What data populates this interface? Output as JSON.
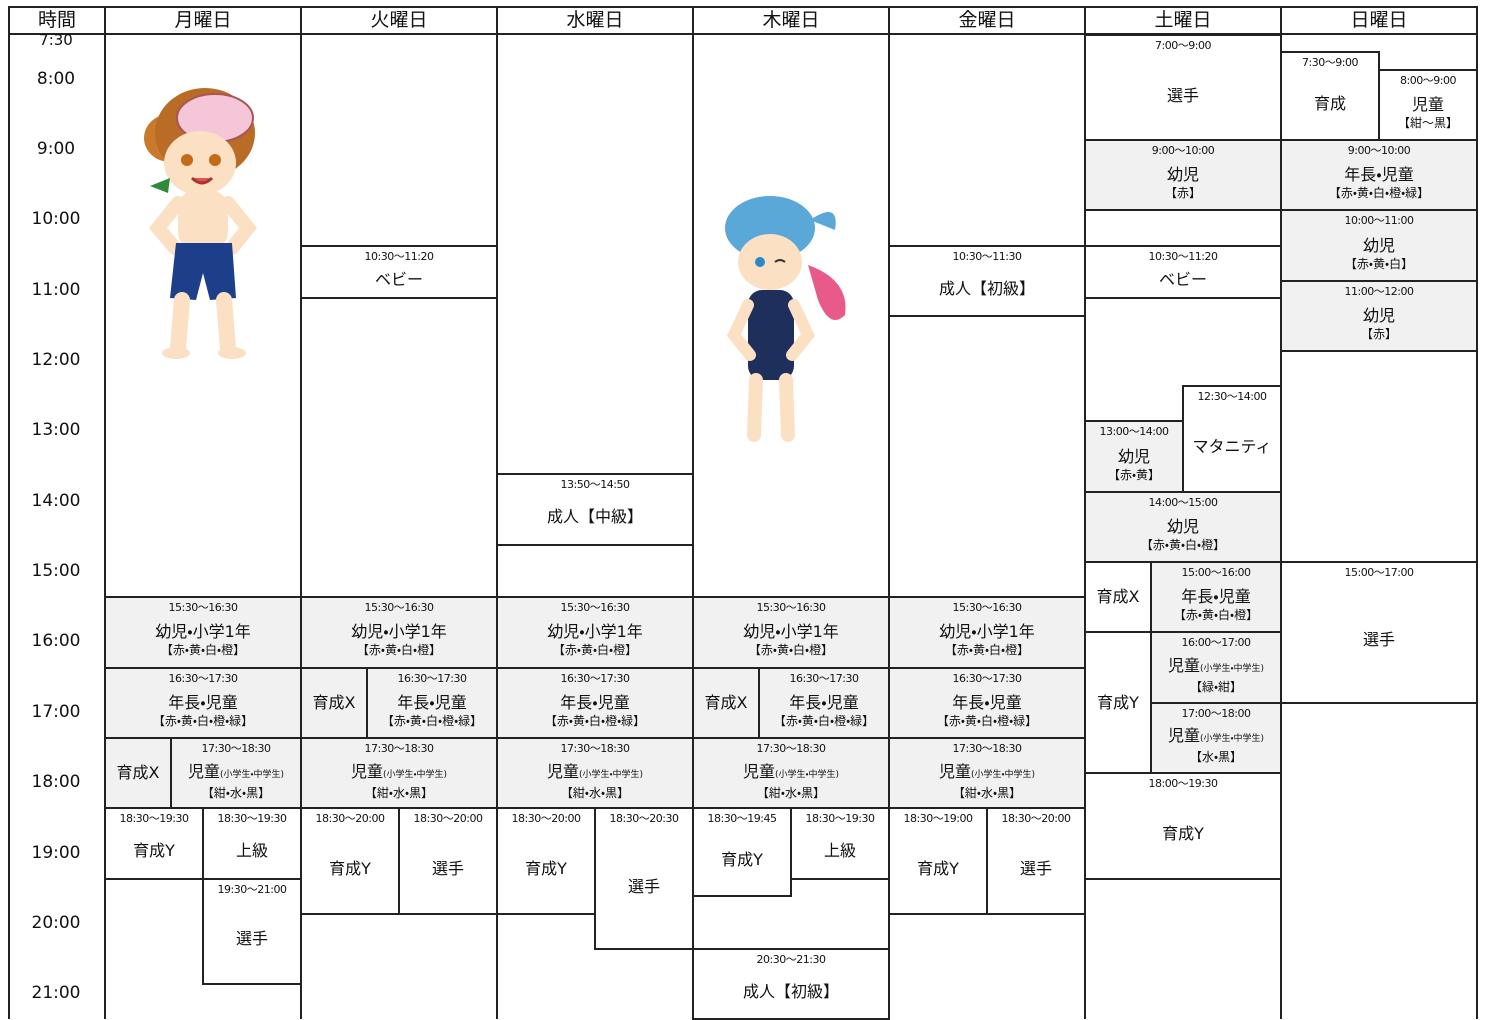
{
  "header": {
    "time": "時間",
    "days": [
      "月曜日",
      "火曜日",
      "水曜日",
      "木曜日",
      "金曜日",
      "土曜日",
      "日曜日"
    ]
  },
  "times": [
    "7:30",
    "8:00",
    "9:00",
    "10:00",
    "11:00",
    "12:00",
    "13:00",
    "14:00",
    "15:00",
    "16:00",
    "17:00",
    "18:00",
    "19:00",
    "20:00",
    "21:00"
  ],
  "days": [
    {
      "blocks": [
        {
          "time": "15:30〜16:30",
          "title": "幼児・小学1年",
          "sub": "【赤・黄・白・橙】"
        },
        {
          "time": "16:30〜17:30",
          "title": "年長・児童",
          "sub": "【赤・黄・白・橙・緑】"
        },
        {
          "title": "育成X"
        },
        {
          "time": "17:30〜18:30",
          "title": "児童",
          "note": "(小学生・中学生)",
          "sub": "【紺・水・黒】"
        },
        {
          "time": "18:30〜19:30",
          "title": "育成Y"
        },
        {
          "time": "18:30〜19:30",
          "title": "上級"
        },
        {
          "time": "19:30〜21:00",
          "title": "選手"
        }
      ]
    },
    {
      "blocks": [
        {
          "time": "10:30〜11:20",
          "title": "ベビー"
        },
        {
          "time": "15:30〜16:30",
          "title": "幼児・小学1年",
          "sub": "【赤・黄・白・橙】"
        },
        {
          "title": "育成X"
        },
        {
          "time": "16:30〜17:30",
          "title": "年長・児童",
          "sub": "【赤・黄・白・橙・緑】"
        },
        {
          "time": "17:30〜18:30",
          "title": "児童",
          "note": "(小学生・中学生)",
          "sub": "【紺・水・黒】"
        },
        {
          "time": "18:30〜20:00",
          "title": "育成Y"
        },
        {
          "time": "18:30〜20:00",
          "title": "選手"
        }
      ]
    },
    {
      "blocks": [
        {
          "time": "13:50〜14:50",
          "title": "成人【中級】"
        },
        {
          "time": "15:30〜16:30",
          "title": "幼児・小学1年",
          "sub": "【赤・黄・白・橙】"
        },
        {
          "time": "16:30〜17:30",
          "title": "年長・児童",
          "sub": "【赤・黄・白・橙・緑】"
        },
        {
          "time": "17:30〜18:30",
          "title": "児童",
          "note": "(小学生・中学生)",
          "sub": "【紺・水・黒】"
        },
        {
          "time": "18:30〜20:00",
          "title": "育成Y"
        },
        {
          "time": "18:30〜20:30",
          "title": "選手"
        }
      ]
    },
    {
      "blocks": [
        {
          "time": "15:30〜16:30",
          "title": "幼児・小学1年",
          "sub": "【赤・黄・白・橙】"
        },
        {
          "title": "育成X"
        },
        {
          "time": "16:30〜17:30",
          "title": "年長・児童",
          "sub": "【赤・黄・白・橙・緑】"
        },
        {
          "time": "17:30〜18:30",
          "title": "児童",
          "note": "(小学生・中学生)",
          "sub": "【紺・水・黒】"
        },
        {
          "time": "18:30〜19:45",
          "title": "育成Y"
        },
        {
          "time": "18:30〜19:30",
          "title": "上級"
        },
        {
          "time": "20:30〜21:30",
          "title": "成人【初級】"
        }
      ]
    },
    {
      "blocks": [
        {
          "time": "10:30〜11:30",
          "title": "成人【初級】"
        },
        {
          "time": "15:30〜16:30",
          "title": "幼児・小学1年",
          "sub": "【赤・黄・白・橙】"
        },
        {
          "time": "16:30〜17:30",
          "title": "年長・児童",
          "sub": "【赤・黄・白・橙・緑】"
        },
        {
          "time": "17:30〜18:30",
          "title": "児童",
          "note": "(小学生・中学生)",
          "sub": "【紺・水・黒】"
        },
        {
          "time": "18:30〜19:00",
          "title": "育成Y"
        },
        {
          "time": "18:30〜20:00",
          "title": "選手"
        }
      ]
    },
    {
      "blocks": [
        {
          "time": "7:00〜9:00",
          "title": "選手"
        },
        {
          "time": "9:00〜10:00",
          "title": "幼児",
          "sub": "【赤】"
        },
        {
          "time": "10:30〜11:20",
          "title": "ベビー"
        },
        {
          "time": "12:30〜14:00",
          "title": "マタニティ"
        },
        {
          "time": "13:00〜14:00",
          "title": "幼児",
          "sub": "【赤・黄】"
        },
        {
          "time": "14:00〜15:00",
          "title": "幼児",
          "sub": "【赤・黄・白・橙】"
        },
        {
          "title": "育成X"
        },
        {
          "time": "15:00〜16:00",
          "title": "年長・児童",
          "sub": "【赤・黄・白・橙】"
        },
        {
          "title": "育成Y"
        },
        {
          "time": "16:00〜17:00",
          "title": "児童",
          "note": "(小学生・中学生)",
          "sub": "【緑・紺】"
        },
        {
          "time": "17:00〜18:00",
          "title": "児童",
          "note": "(小学生・中学生)",
          "sub": "【水・黒】"
        },
        {
          "time": "18:00〜19:30",
          "title": "育成Y"
        }
      ]
    },
    {
      "blocks": [
        {
          "time": "7:30〜9:00",
          "title": "育成"
        },
        {
          "time": "8:00〜9:00",
          "title": "児童",
          "sub": "【紺〜黒】"
        },
        {
          "time": "9:00〜10:00",
          "title": "年長・児童",
          "sub": "【赤・黄・白・橙・緑】"
        },
        {
          "time": "10:00〜11:00",
          "title": "幼児",
          "sub": "【赤・黄・白】"
        },
        {
          "time": "11:00〜12:00",
          "title": "幼児",
          "sub": "【赤】"
        },
        {
          "time": "15:00〜17:00",
          "title": "選手"
        }
      ]
    }
  ]
}
